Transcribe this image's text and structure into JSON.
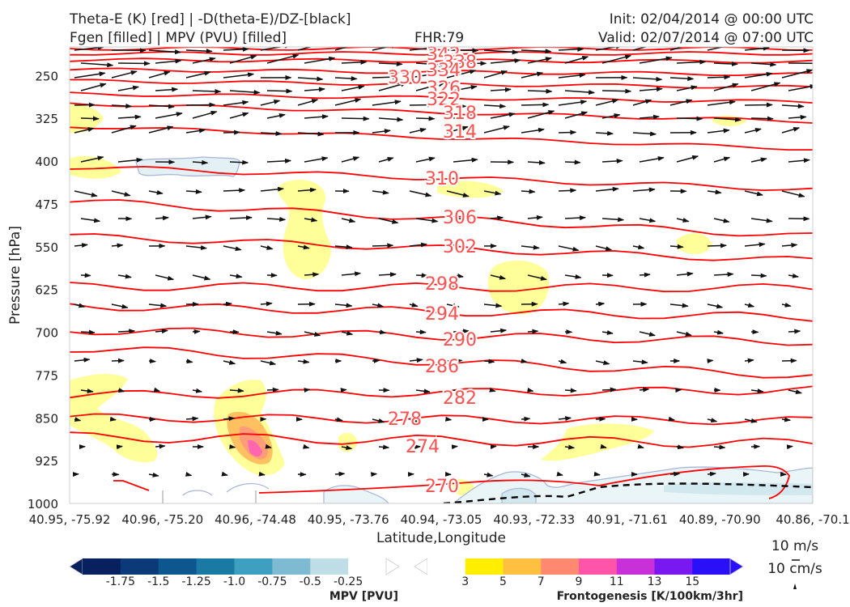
{
  "header": {
    "title_left_1": "Theta-E (K) [red] | -D(theta-E)/DZ-[black]",
    "title_left_2": "Fgen [filled] | MPV (PVU) [filled]",
    "fhr": "FHR:79",
    "init": "Init: 02/04/2014 @ 00:00 UTC",
    "valid": "Valid: 02/07/2014 @ 07:00 UTC"
  },
  "chart_data": {
    "type": "cross-section",
    "title": "Theta-E (K) [red] | -D(theta-E)/DZ-[black] / Fgen [filled] | MPV (PVU) [filled]",
    "xlabel": "Latitude,Longitude",
    "ylabel": "Pressure [hPa]",
    "x_ticks": [
      "40.95, -75.92",
      "40.96, -75.20",
      "40.96, -74.48",
      "40.95, -73.76",
      "40.94, -73.05",
      "40.93, -72.33",
      "40.91, -71.61",
      "40.89, -70.90",
      "40.86, -70.1"
    ],
    "y_ticks": [
      250,
      325,
      400,
      475,
      550,
      625,
      700,
      775,
      850,
      925,
      1000
    ],
    "ylim": [
      1000,
      200
    ],
    "y_inverted": true,
    "theta_e_contours": {
      "color": "#ff0000",
      "levels": [
        342,
        338,
        334,
        330,
        326,
        322,
        318,
        314,
        310,
        306,
        302,
        298,
        294,
        290,
        286,
        282,
        278,
        274,
        270
      ]
    },
    "mpv_colorbar": {
      "label": "MPV [PVU]",
      "ticks": [
        "-1.75",
        "-1.5",
        "-1.25",
        "-1.0",
        "-0.75",
        "-0.5",
        "-0.25"
      ],
      "colors": [
        "#08215e",
        "#0c3a78",
        "#0e568e",
        "#1b7aa3",
        "#3f9fc1",
        "#7fbad3",
        "#bedde6",
        "#ffffff"
      ]
    },
    "fgen_colorbar": {
      "label": "Frontogenesis [K/100km/3hr]",
      "ticks": [
        "3",
        "5",
        "7",
        "9",
        "11",
        "13",
        "15"
      ],
      "colors": [
        "#ffffff",
        "#ffee00",
        "#ffbf40",
        "#ff8870",
        "#ff55a8",
        "#c830d8",
        "#7a18f2",
        "#2a10f8"
      ]
    },
    "vector_key": {
      "label_1": "10 m/s",
      "label_2": "10 cm/s"
    }
  }
}
